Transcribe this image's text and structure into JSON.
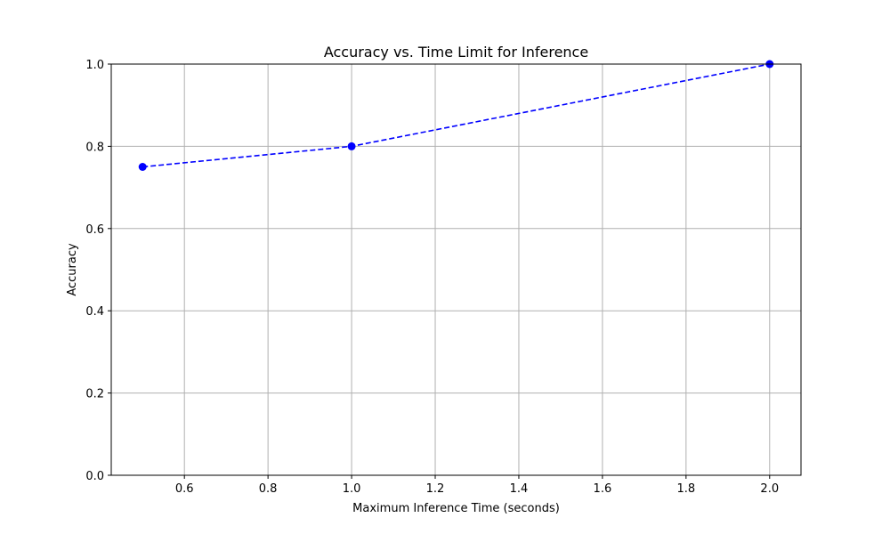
{
  "chart_data": {
    "type": "line",
    "title": "Accuracy vs. Time Limit for Inference",
    "xlabel": "Maximum Inference Time (seconds)",
    "ylabel": "Accuracy",
    "xlim": [
      0.425,
      2.075
    ],
    "ylim": [
      0.0,
      1.0
    ],
    "xticks": [
      0.6,
      0.8,
      1.0,
      1.2,
      1.4,
      1.6,
      1.8,
      2.0
    ],
    "xtick_labels": [
      "0.6",
      "0.8",
      "1.0",
      "1.2",
      "1.4",
      "1.6",
      "1.8",
      "2.0"
    ],
    "yticks": [
      0.0,
      0.2,
      0.4,
      0.6,
      0.8,
      1.0
    ],
    "ytick_labels": [
      "0.0",
      "0.2",
      "0.4",
      "0.6",
      "0.8",
      "1.0"
    ],
    "grid": true,
    "series": [
      {
        "x": [
          0.5,
          1.0,
          2.0
        ],
        "y": [
          0.75,
          0.8,
          1.0
        ],
        "color": "#0000ff",
        "line_style": "dashed",
        "marker": "circle"
      }
    ]
  }
}
